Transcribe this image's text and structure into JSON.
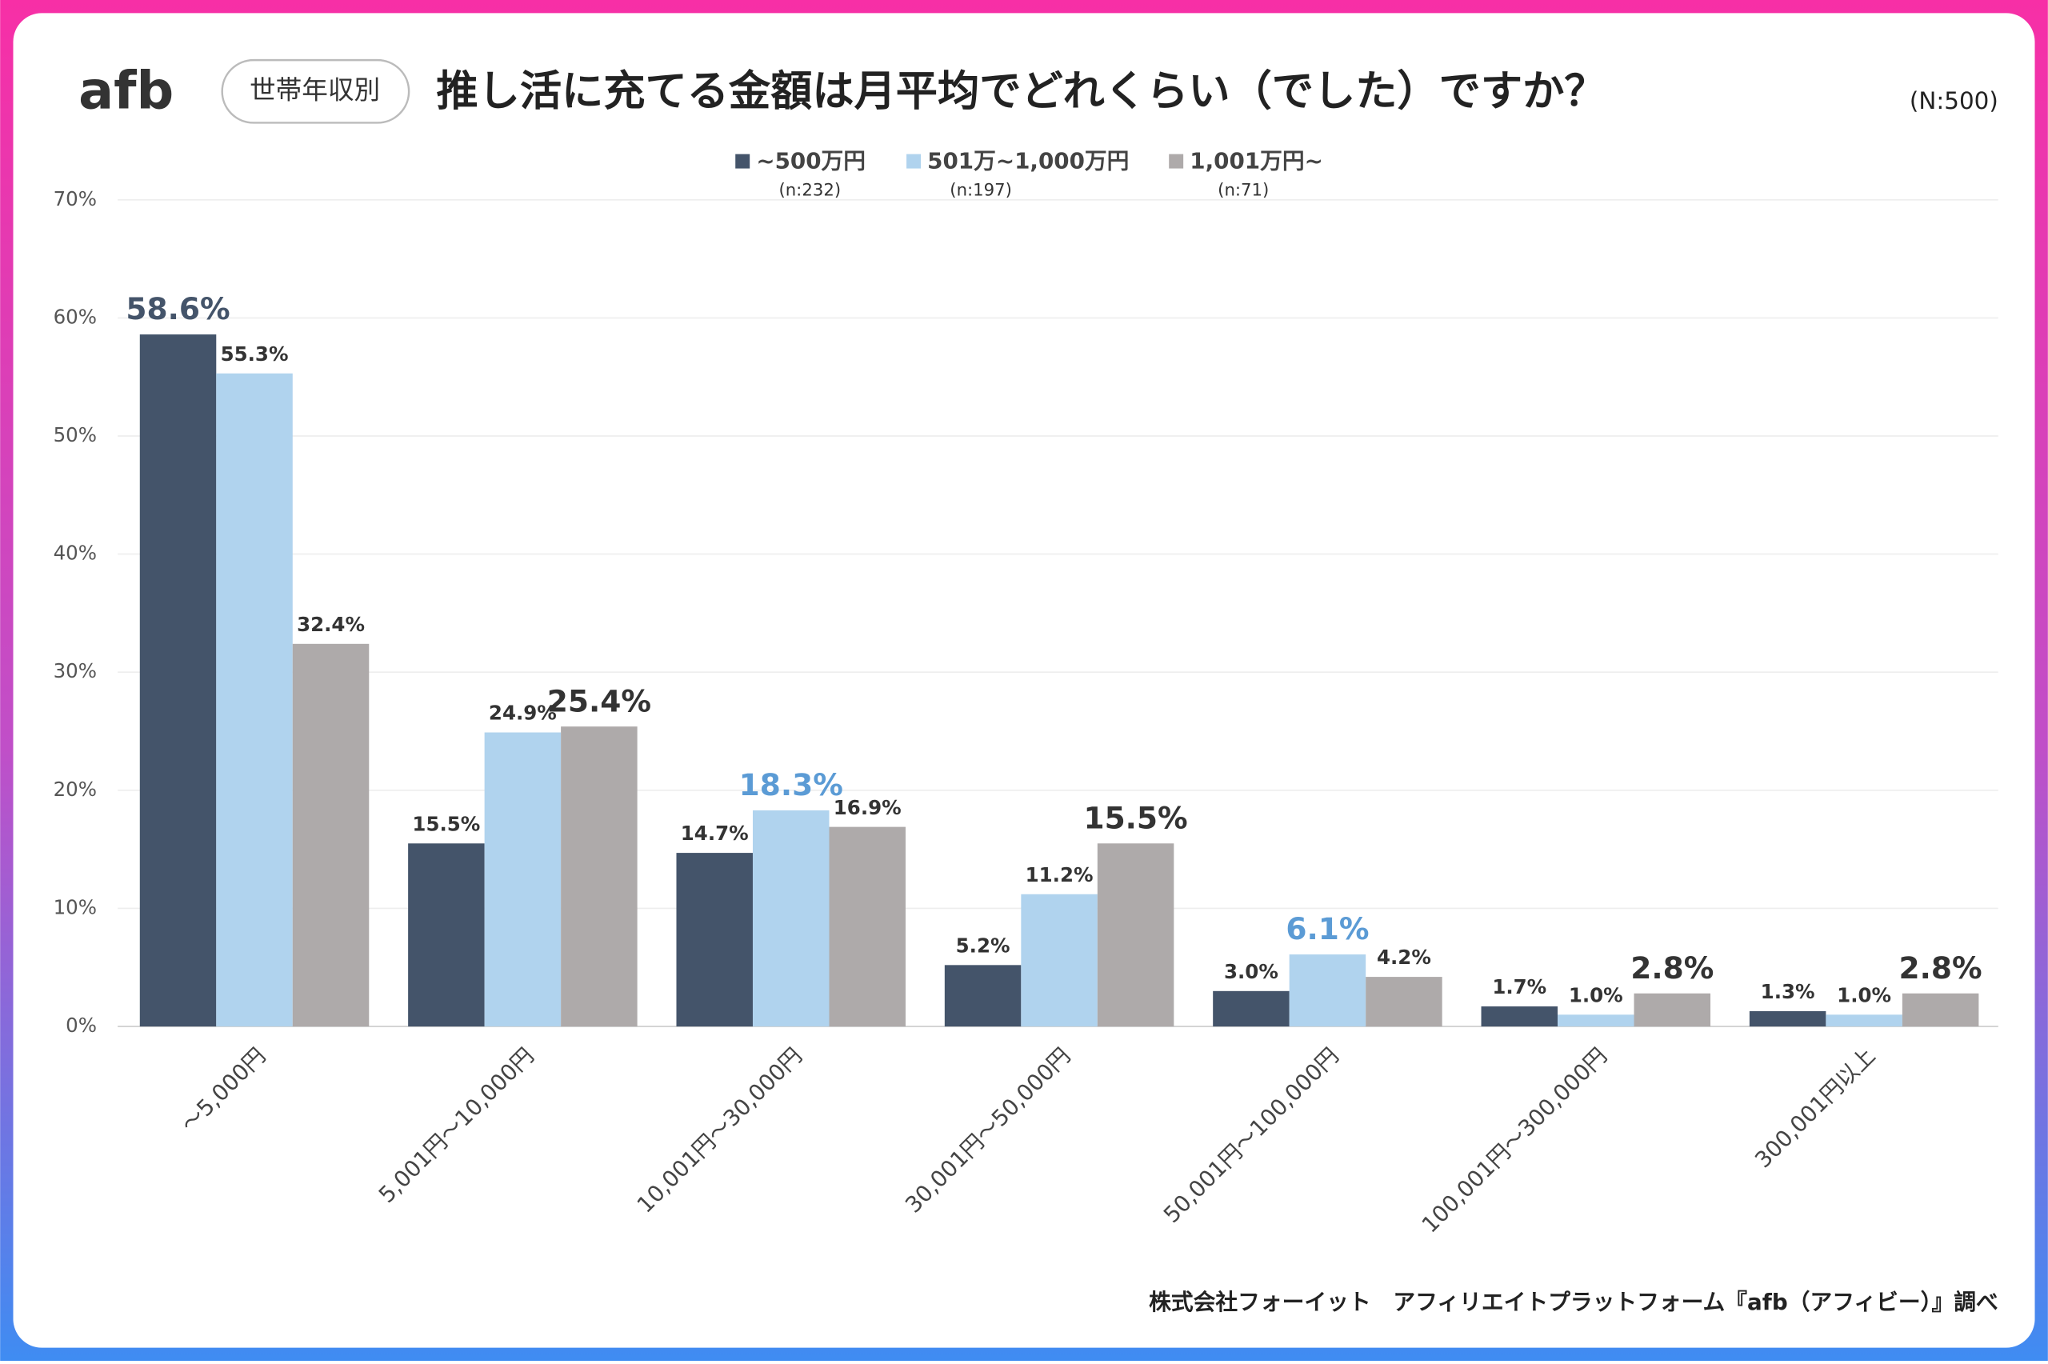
{
  "chart_data": {
    "type": "bar",
    "logo": "afb",
    "badge": "世帯年収別",
    "title": "推し活に充てる金額は月平均でどれくらい（でした）ですか？",
    "note": "(N:500)",
    "source": "株式会社フォーイット　アフィリエイトプラットフォーム『afb（アフィビー）』調べ",
    "categories": [
      "～5,000円",
      "5,001円～10,000円",
      "10,001円～30,000円",
      "30,001円～50,000円",
      "50,001円～100,000円",
      "100,001円～300,000円",
      "300,001円以上"
    ],
    "series": [
      {
        "name": "~500万円",
        "sample": "(n:232)",
        "color": "#44546a",
        "label_color": "#44546a",
        "values": [
          58.6,
          15.5,
          14.7,
          5.2,
          3.0,
          1.7,
          1.3
        ],
        "value_labels": [
          "58.6%",
          "15.5%",
          "14.7%",
          "5.2%",
          "3.0%",
          "1.7%",
          "1.3%"
        ]
      },
      {
        "name": "501万~1,000万円",
        "sample": "(n:197)",
        "color": "#b0d3ee",
        "label_color": "#5b9bd5",
        "values": [
          55.3,
          24.9,
          18.3,
          11.2,
          6.1,
          1.0,
          1.0
        ],
        "value_labels": [
          "55.3%",
          "24.9%",
          "18.3%",
          "11.2%",
          "6.1%",
          "1.0%",
          "1.0%"
        ]
      },
      {
        "name": "1,001万円~",
        "sample": "(n:71)",
        "color": "#aeaaaa",
        "label_color": "#333333",
        "values": [
          32.4,
          25.4,
          16.9,
          15.5,
          4.2,
          2.8,
          2.8
        ],
        "value_labels": [
          "32.4%",
          "25.4%",
          "16.9%",
          "15.5%",
          "4.2%",
          "2.8%",
          "2.8%"
        ]
      }
    ],
    "ylim": [
      0,
      70
    ],
    "yticks": [
      {
        "value": 0,
        "label": "0%"
      },
      {
        "value": 10,
        "label": "10%"
      },
      {
        "value": 20,
        "label": "20%"
      },
      {
        "value": 30,
        "label": "30%"
      },
      {
        "value": 40,
        "label": "40%"
      },
      {
        "value": 50,
        "label": "50%"
      },
      {
        "value": 60,
        "label": "60%"
      },
      {
        "value": 70,
        "label": "70%"
      }
    ],
    "grid": true
  }
}
